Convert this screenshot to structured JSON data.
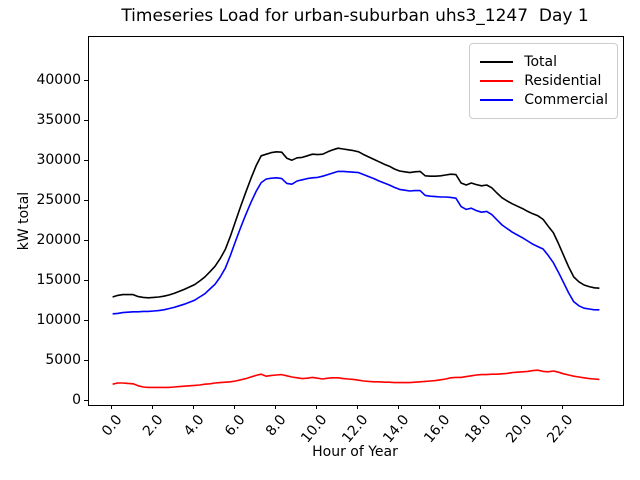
{
  "chart_data": {
    "type": "line",
    "title": "Timeseries Load for urban-suburban uhs3_1247  Day 1",
    "xlabel": "Hour of Year",
    "ylabel": "kW total",
    "xlim": [
      -1.15,
      24.9
    ],
    "ylim": [
      -500,
      45500
    ],
    "grid": false,
    "legend_position": "upper right",
    "x_ticks": [
      0,
      2,
      4,
      6,
      8,
      10,
      12,
      14,
      16,
      18,
      20,
      22
    ],
    "x_tick_labels": [
      "0.0",
      "2.0",
      "4.0",
      "6.0",
      "8.0",
      "10.0",
      "12.0",
      "14.0",
      "16.0",
      "18.0",
      "20.0",
      "22.0"
    ],
    "x_tick_rotation_deg": 50,
    "y_ticks": [
      0,
      5000,
      10000,
      15000,
      20000,
      25000,
      30000,
      35000,
      40000
    ],
    "y_tick_labels": [
      "0",
      "5000",
      "10000",
      "15000",
      "20000",
      "25000",
      "30000",
      "35000",
      "40000"
    ],
    "x_start": 0,
    "x_step": 0.25,
    "x_end": 23.75,
    "series": [
      {
        "name": "Total",
        "color": "#000000",
        "values": [
          13000,
          13200,
          13300,
          13300,
          13300,
          13050,
          12950,
          12900,
          12950,
          13000,
          13100,
          13250,
          13450,
          13700,
          13950,
          14250,
          14550,
          15000,
          15500,
          16150,
          16850,
          17800,
          18950,
          20600,
          22500,
          24350,
          26100,
          27800,
          29400,
          30650,
          30850,
          31050,
          31150,
          31100,
          30350,
          30100,
          30400,
          30450,
          30650,
          30850,
          30800,
          30850,
          31150,
          31400,
          31600,
          31500,
          31400,
          31300,
          31150,
          30800,
          30500,
          30200,
          29900,
          29600,
          29350,
          29000,
          28750,
          28650,
          28550,
          28650,
          28700,
          28150,
          28100,
          28100,
          28150,
          28250,
          28350,
          28300,
          27250,
          27000,
          27250,
          27050,
          26900,
          27000,
          26650,
          26000,
          25400,
          25000,
          24650,
          24350,
          24050,
          23700,
          23400,
          23150,
          22700,
          21850,
          21050,
          19700,
          18200,
          16750,
          15500,
          14900,
          14500,
          14300,
          14150,
          14100
        ]
      },
      {
        "name": "Residential",
        "color": "#ff0000",
        "values": [
          2100,
          2250,
          2250,
          2200,
          2150,
          1900,
          1750,
          1700,
          1700,
          1700,
          1700,
          1700,
          1750,
          1800,
          1850,
          1900,
          1950,
          2000,
          2100,
          2150,
          2250,
          2300,
          2350,
          2400,
          2500,
          2650,
          2800,
          3000,
          3200,
          3350,
          3100,
          3200,
          3250,
          3300,
          3150,
          3000,
          2900,
          2800,
          2850,
          2950,
          2850,
          2750,
          2850,
          2900,
          2900,
          2800,
          2750,
          2700,
          2600,
          2500,
          2450,
          2400,
          2400,
          2350,
          2350,
          2300,
          2300,
          2300,
          2300,
          2350,
          2400,
          2450,
          2500,
          2550,
          2650,
          2750,
          2900,
          2950,
          2950,
          3050,
          3150,
          3250,
          3300,
          3300,
          3350,
          3350,
          3400,
          3450,
          3550,
          3600,
          3650,
          3700,
          3800,
          3850,
          3700,
          3650,
          3750,
          3600,
          3400,
          3250,
          3100,
          3000,
          2900,
          2800,
          2750,
          2700
        ]
      },
      {
        "name": "Commercial",
        "color": "#0000ff",
        "values": [
          10900,
          10950,
          11050,
          11100,
          11150,
          11150,
          11200,
          11200,
          11250,
          11300,
          11400,
          11550,
          11700,
          11900,
          12100,
          12350,
          12600,
          13000,
          13400,
          14000,
          14600,
          15500,
          16600,
          18200,
          20000,
          21700,
          23300,
          24800,
          26200,
          27300,
          27750,
          27850,
          27900,
          27800,
          27200,
          27100,
          27500,
          27650,
          27800,
          27900,
          27950,
          28100,
          28300,
          28500,
          28700,
          28700,
          28650,
          28600,
          28550,
          28300,
          28050,
          27800,
          27500,
          27250,
          27000,
          26700,
          26450,
          26350,
          26250,
          26300,
          26300,
          25700,
          25600,
          25550,
          25500,
          25500,
          25450,
          25350,
          24300,
          23950,
          24100,
          23800,
          23600,
          23700,
          23300,
          22650,
          22000,
          21550,
          21100,
          20750,
          20400,
          20000,
          19600,
          19300,
          19000,
          18200,
          17300,
          16100,
          14800,
          13500,
          12400,
          11900,
          11600,
          11500,
          11400,
          11400
        ]
      }
    ]
  }
}
